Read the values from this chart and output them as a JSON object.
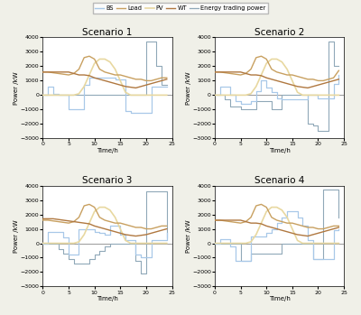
{
  "time": [
    0,
    1,
    2,
    3,
    4,
    5,
    6,
    7,
    8,
    9,
    10,
    11,
    12,
    13,
    14,
    15,
    16,
    17,
    18,
    19,
    20,
    21,
    22,
    23,
    24
  ],
  "scenarios": {
    "1": {
      "BS": [
        0,
        600,
        100,
        0,
        0,
        -1000,
        -1000,
        -1000,
        700,
        1200,
        1200,
        1200,
        1200,
        1200,
        1100,
        1100,
        -1100,
        -1200,
        -1200,
        -1200,
        -1200,
        600,
        600,
        600,
        600
      ],
      "Load": [
        1600,
        1600,
        1550,
        1500,
        1450,
        1400,
        1500,
        1800,
        2600,
        2700,
        2500,
        1800,
        1600,
        1500,
        1400,
        1400,
        1300,
        1200,
        1100,
        1100,
        1000,
        1000,
        1100,
        1200,
        1200
      ],
      "PV": [
        0,
        0,
        0,
        0,
        0,
        0,
        0,
        100,
        600,
        1400,
        2200,
        2500,
        2500,
        2300,
        1800,
        1000,
        200,
        0,
        0,
        0,
        0,
        0,
        0,
        0,
        0
      ],
      "WT": [
        1600,
        1600,
        1600,
        1600,
        1600,
        1600,
        1500,
        1400,
        1400,
        1350,
        1200,
        1100,
        1000,
        900,
        800,
        700,
        600,
        550,
        500,
        600,
        700,
        800,
        900,
        1000,
        1100
      ],
      "ETP": [
        0,
        0,
        0,
        0,
        0,
        0,
        0,
        0,
        0,
        0,
        0,
        0,
        0,
        0,
        0,
        0,
        0,
        0,
        0,
        0,
        3700,
        3700,
        2000,
        700,
        700
      ]
    },
    "2": {
      "BS": [
        0,
        600,
        600,
        0,
        -400,
        -600,
        -600,
        -400,
        300,
        1000,
        500,
        200,
        -200,
        -300,
        -300,
        -300,
        -300,
        -300,
        0,
        0,
        -200,
        -200,
        -200,
        800,
        1400
      ],
      "Load": [
        1600,
        1600,
        1550,
        1500,
        1450,
        1400,
        1500,
        1800,
        2600,
        2700,
        2500,
        1800,
        1600,
        1500,
        1400,
        1400,
        1300,
        1200,
        1100,
        1100,
        1000,
        1000,
        1100,
        1200,
        1700
      ],
      "PV": [
        0,
        0,
        0,
        0,
        0,
        0,
        0,
        100,
        600,
        1400,
        2200,
        2500,
        2500,
        2300,
        1800,
        1000,
        200,
        0,
        0,
        0,
        0,
        0,
        0,
        0,
        0
      ],
      "WT": [
        1600,
        1600,
        1600,
        1600,
        1600,
        1600,
        1500,
        1400,
        1400,
        1350,
        1200,
        1100,
        1000,
        900,
        800,
        700,
        600,
        550,
        500,
        600,
        700,
        800,
        900,
        1000,
        1100
      ],
      "ETP": [
        0,
        0,
        -300,
        -800,
        -800,
        -1000,
        -1000,
        -1000,
        -400,
        -400,
        -400,
        -1000,
        -1000,
        0,
        0,
        0,
        0,
        0,
        -2000,
        -2100,
        -2500,
        -2500,
        3700,
        2000,
        2000
      ]
    },
    "3": {
      "BS": [
        0,
        800,
        800,
        800,
        400,
        -800,
        -800,
        1000,
        1000,
        1000,
        800,
        700,
        600,
        1200,
        1200,
        600,
        200,
        200,
        -800,
        -1000,
        -1000,
        200,
        200,
        200,
        700
      ],
      "Load": [
        1600,
        1600,
        1550,
        1500,
        1450,
        1400,
        1500,
        1800,
        2600,
        2700,
        2500,
        1800,
        1600,
        1500,
        1400,
        1400,
        1300,
        1200,
        1100,
        1100,
        1000,
        1000,
        1100,
        1200,
        1200
      ],
      "PV": [
        0,
        0,
        0,
        0,
        0,
        0,
        0,
        100,
        600,
        1400,
        2200,
        2500,
        2500,
        2300,
        1800,
        1000,
        200,
        0,
        0,
        0,
        0,
        0,
        0,
        0,
        0
      ],
      "WT": [
        1700,
        1700,
        1700,
        1650,
        1600,
        1550,
        1500,
        1450,
        1400,
        1350,
        1200,
        1100,
        1000,
        900,
        800,
        700,
        600,
        550,
        500,
        550,
        600,
        700,
        800,
        900,
        1000
      ],
      "ETP": [
        0,
        0,
        0,
        -400,
        -700,
        -1100,
        -1400,
        -1400,
        -1400,
        -1100,
        -800,
        -500,
        -200,
        0,
        0,
        0,
        0,
        0,
        -1200,
        -2100,
        3600,
        3600,
        3600,
        3600,
        400
      ]
    },
    "4": {
      "BS": [
        0,
        300,
        300,
        -200,
        -1200,
        -1200,
        -1200,
        500,
        500,
        500,
        700,
        1000,
        1400,
        1800,
        2200,
        2200,
        1800,
        1200,
        200,
        -1100,
        -1100,
        -1100,
        -1100,
        900,
        1000
      ],
      "Load": [
        1600,
        1600,
        1550,
        1500,
        1450,
        1400,
        1500,
        1800,
        2600,
        2700,
        2500,
        1800,
        1600,
        1500,
        1400,
        1400,
        1300,
        1200,
        1100,
        1100,
        1000,
        1000,
        1100,
        1200,
        1200
      ],
      "PV": [
        0,
        0,
        0,
        0,
        0,
        0,
        0,
        100,
        600,
        1400,
        2200,
        2500,
        2500,
        2300,
        1800,
        1000,
        200,
        0,
        0,
        0,
        0,
        0,
        0,
        0,
        0
      ],
      "WT": [
        1600,
        1600,
        1600,
        1600,
        1600,
        1600,
        1500,
        1400,
        1400,
        1350,
        1200,
        1100,
        1000,
        900,
        800,
        700,
        600,
        550,
        500,
        600,
        700,
        800,
        900,
        1000,
        1100
      ],
      "ETP": [
        0,
        0,
        0,
        0,
        0,
        -1200,
        -1200,
        -700,
        -700,
        -700,
        -700,
        -700,
        -700,
        0,
        0,
        0,
        0,
        0,
        0,
        -1100,
        -1100,
        3700,
        3700,
        3700,
        1800
      ]
    }
  },
  "colors": {
    "BS": "#a8c8e8",
    "Load": "#c8a060",
    "PV": "#e8d8a0",
    "WT": "#b07840",
    "ETP": "#90a8b8"
  },
  "ylim": [
    -3000,
    4000
  ],
  "xlim": [
    0,
    25
  ],
  "xticks": [
    0,
    5,
    10,
    15,
    20,
    25
  ],
  "yticks": [
    -3000,
    -2000,
    -1000,
    0,
    1000,
    2000,
    3000,
    4000
  ],
  "xlabel": "Time/h",
  "ylabel": "Power /kW",
  "bg_color": "#ffffff",
  "fig_bg": "#f0f0e8",
  "legend_labels": [
    "BS",
    "Load",
    "PV",
    "WT",
    "Energy trading power"
  ]
}
